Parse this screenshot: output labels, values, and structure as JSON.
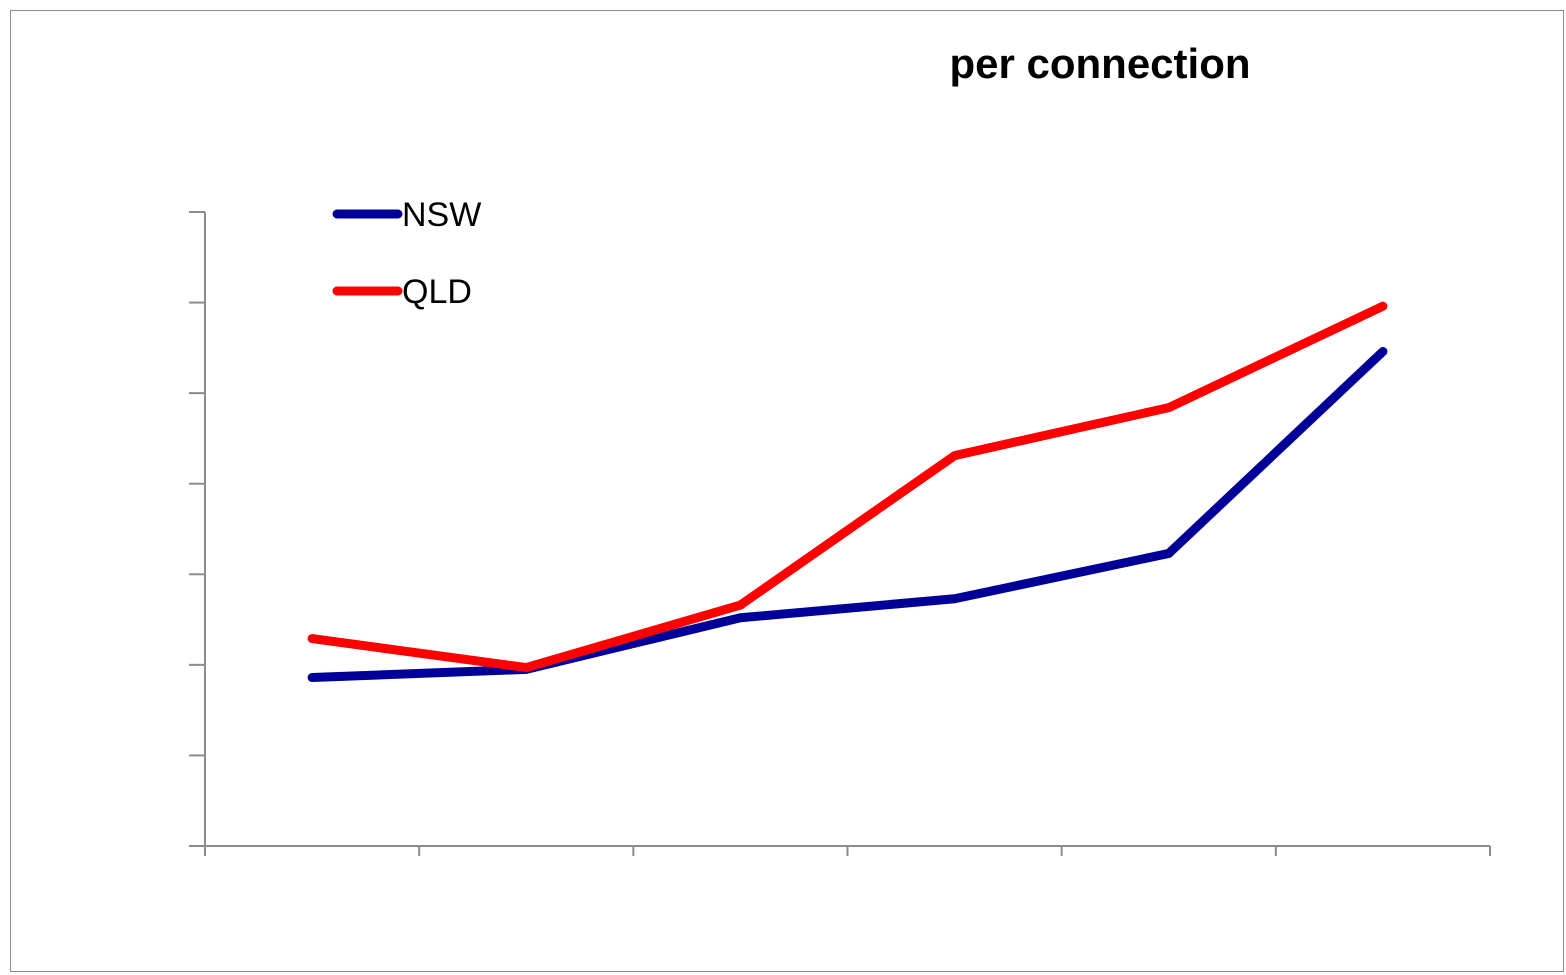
{
  "chart_data": {
    "type": "line",
    "title": "per connection",
    "xlabel": "",
    "ylabel": "",
    "categories": [
      "",
      "",
      "",
      "",
      "",
      ""
    ],
    "ylim": [
      0,
      7
    ],
    "grid": false,
    "legend_position": "top-left",
    "series": [
      {
        "name": "NSW",
        "color": "#000099",
        "values": [
          1.86,
          1.95,
          2.52,
          2.73,
          3.23,
          5.46
        ]
      },
      {
        "name": "QLD",
        "color": "#ff0000",
        "values": [
          2.29,
          1.97,
          2.66,
          4.31,
          4.84,
          5.96
        ]
      }
    ]
  }
}
